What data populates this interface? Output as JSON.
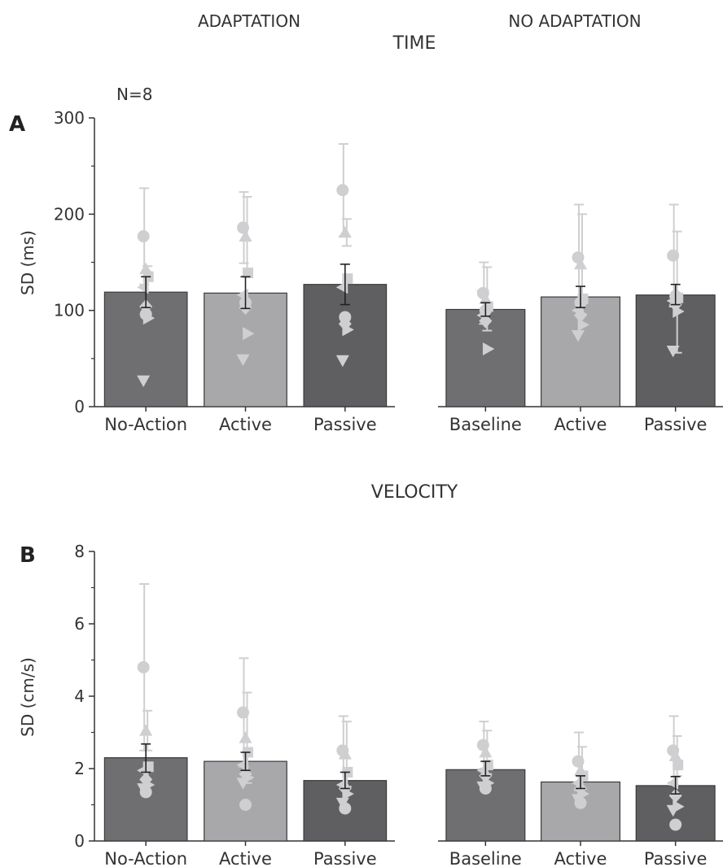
{
  "header": {
    "left_group": "ADAPTATION",
    "right_group": "NO ADAPTATION"
  },
  "colors": {
    "bar_dark": "#6f6f72",
    "bar_light": "#a8a8ab",
    "bar_darker": "#5f5f62",
    "points": "#cfcfd1",
    "mean_error": "#222222",
    "axis": "#333333"
  },
  "chart_data": [
    {
      "type": "bar",
      "panel_letter": "A",
      "title": "TIME",
      "annotation": "N=8",
      "ylabel": "SD (ms)",
      "ylim": [
        0,
        300
      ],
      "yticks": [
        0,
        100,
        200,
        300
      ],
      "groups": [
        {
          "name": "ADAPTATION",
          "categories": [
            "No-Action",
            "Active",
            "Passive"
          ],
          "values": [
            119,
            118,
            127
          ],
          "error": [
            [
              103,
              135
            ],
            [
              102,
              135
            ],
            [
              106,
              148
            ]
          ],
          "bar_colors": [
            "#6f6f72",
            "#a8a8ab",
            "#5f5f62"
          ],
          "points": [
            [
              177,
              143,
              135,
              124,
              104,
              92,
              27,
              96
            ],
            [
              186,
              177,
              139,
              116,
              103,
              76,
              49,
              108
            ],
            [
              225,
              181,
              133,
              124,
              86,
              80,
              48,
              93
            ]
          ],
          "point_errors": [
            [
              227,
              140
            ],
            [
              223,
              218
            ],
            [
              273,
              195
            ]
          ]
        },
        {
          "name": "NO ADAPTATION",
          "categories": [
            "Baseline",
            "Active",
            "Passive"
          ],
          "values": [
            101,
            114,
            116
          ],
          "error": [
            [
              94,
              108
            ],
            [
              103,
              125
            ],
            [
              106,
              127
            ]
          ],
          "bar_colors": [
            "#6f6f72",
            "#a8a8ab",
            "#5f5f62"
          ],
          "points": [
            [
              118,
              112,
              104,
              95,
              89,
              60,
              116,
              100
            ],
            [
              155,
              148,
              112,
              100,
              95,
              85,
              74,
              108
            ],
            [
              157,
              119,
              113,
              110,
              106,
              99,
              58,
              115
            ]
          ],
          "point_errors": [
            [
              150,
              145
            ],
            [
              210,
              200
            ],
            [
              210,
              182
            ]
          ]
        }
      ]
    },
    {
      "type": "bar",
      "panel_letter": "B",
      "title": "VELOCITY",
      "ylabel": "SD (cm/s)",
      "ylim": [
        0,
        8
      ],
      "yticks": [
        0,
        2,
        4,
        6,
        8
      ],
      "groups": [
        {
          "name": "ADAPTATION",
          "categories": [
            "No-Action",
            "Active",
            "Passive"
          ],
          "values": [
            2.3,
            2.2,
            1.67
          ],
          "error": [
            [
              1.9,
              2.68
            ],
            [
              1.95,
              2.45
            ],
            [
              1.45,
              1.9
            ]
          ],
          "bar_colors": [
            "#6f6f72",
            "#a8a8ab",
            "#5f5f62"
          ],
          "points": [
            [
              4.8,
              3.05,
              2.05,
              1.95,
              1.7,
              1.55,
              1.45,
              1.35
            ],
            [
              3.55,
              2.85,
              2.45,
              2.1,
              1.85,
              1.75,
              1.6,
              1.0
            ],
            [
              2.5,
              2.4,
              1.9,
              1.55,
              1.45,
              1.3,
              1.05,
              0.9
            ]
          ],
          "point_errors": [
            [
              7.1,
              3.6
            ],
            [
              5.05,
              4.1
            ],
            [
              3.45,
              3.3
            ]
          ]
        },
        {
          "name": "NO ADAPTATION",
          "categories": [
            "Baseline",
            "Active",
            "Passive"
          ],
          "values": [
            1.97,
            1.63,
            1.53
          ],
          "error": [
            [
              1.8,
              2.2
            ],
            [
              1.45,
              1.8
            ],
            [
              1.3,
              1.78
            ]
          ],
          "bar_colors": [
            "#6f6f72",
            "#a8a8ab",
            "#5f5f62"
          ],
          "points": [
            [
              2.65,
              2.45,
              2.1,
              1.95,
              1.8,
              1.6,
              1.5,
              1.45
            ],
            [
              2.2,
              1.95,
              1.8,
              1.6,
              1.45,
              1.3,
              1.15,
              1.05
            ],
            [
              2.5,
              2.35,
              2.1,
              1.6,
              1.25,
              0.95,
              0.85,
              0.45
            ]
          ],
          "point_errors": [
            [
              3.3,
              3.05
            ],
            [
              3.0,
              2.6
            ],
            [
              3.45,
              2.9
            ]
          ]
        }
      ]
    }
  ]
}
